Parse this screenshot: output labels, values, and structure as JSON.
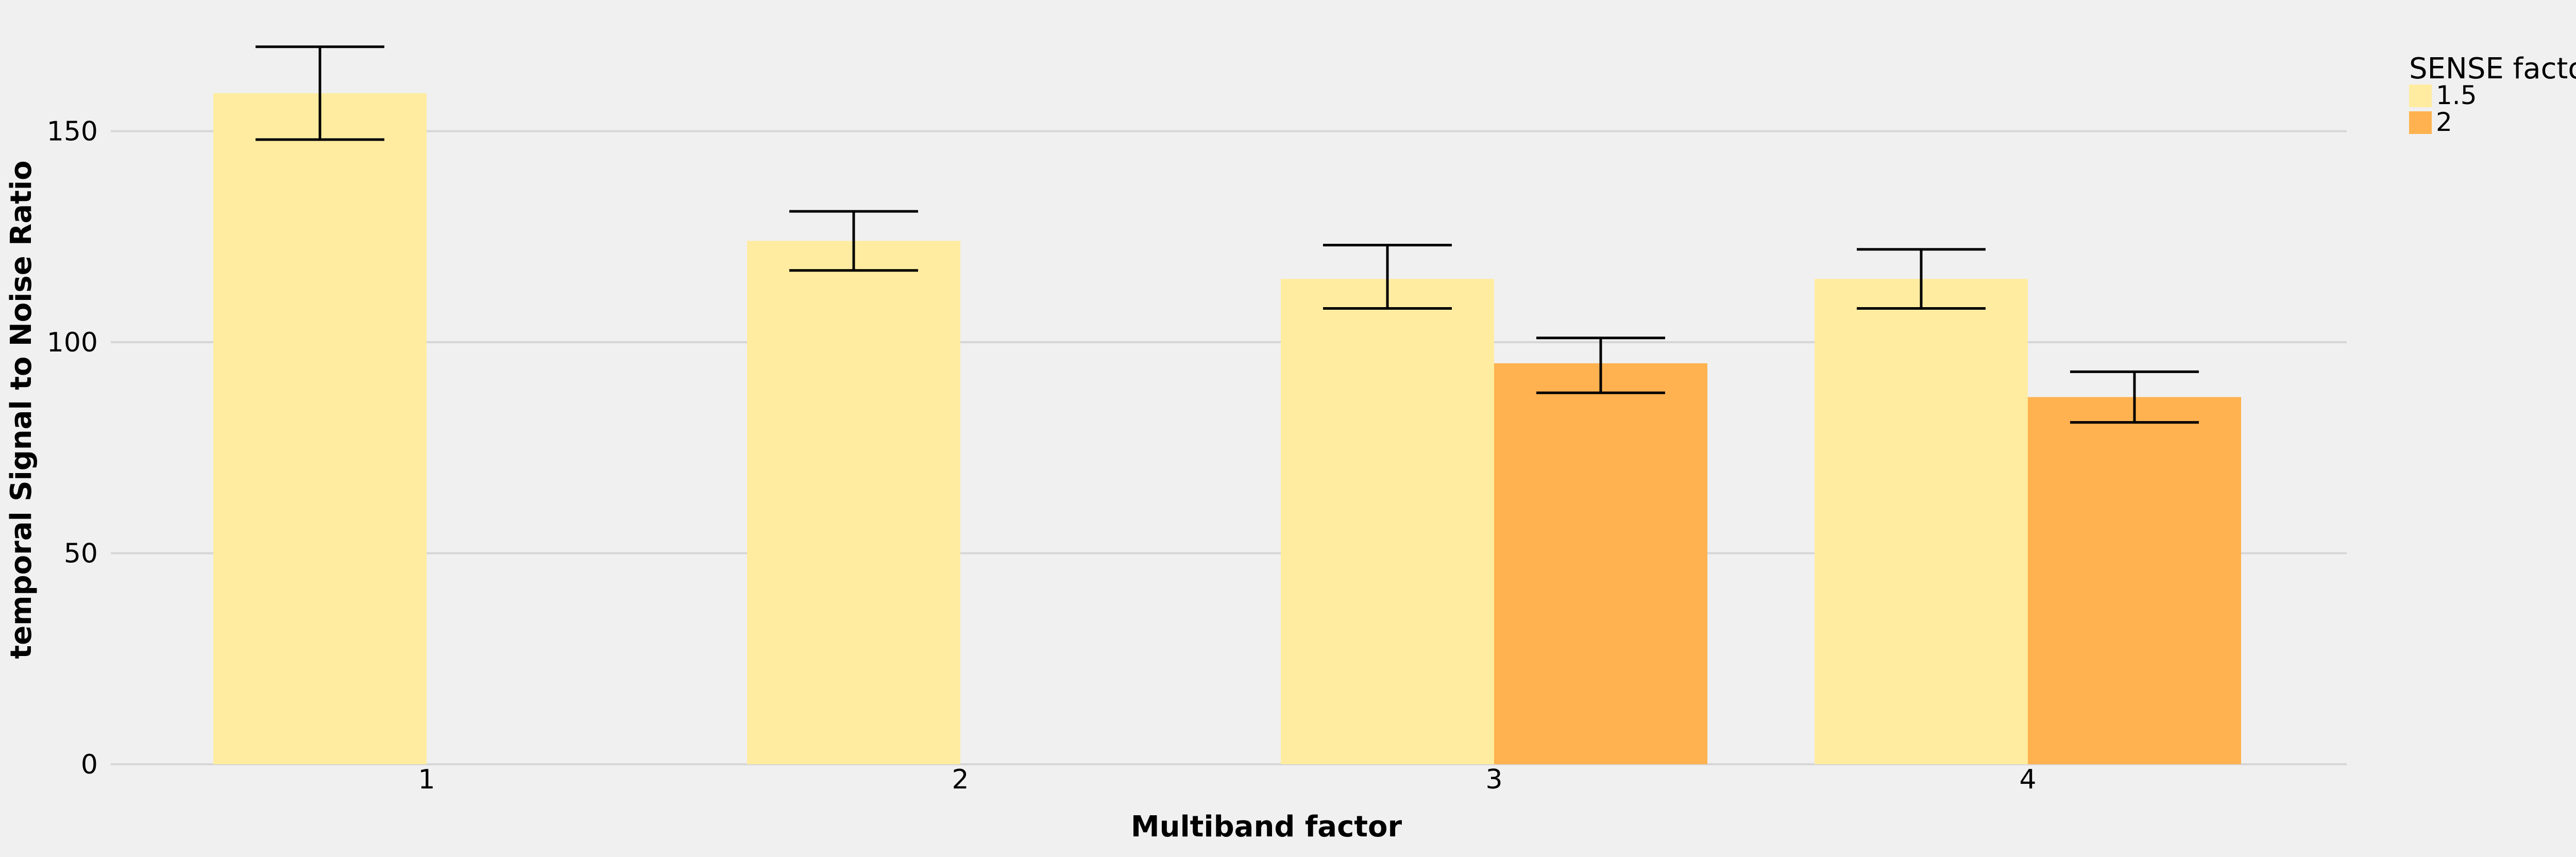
{
  "chart_data": {
    "type": "bar",
    "xlabel": "Multiband factor",
    "ylabel": "temporal Signal to Noise Ratio",
    "categories": [
      "1",
      "2",
      "3",
      "4"
    ],
    "ylim": [
      0,
      172
    ],
    "yticks": [
      0,
      50,
      100,
      150
    ],
    "grid": "horizontal",
    "legend": {
      "title": "SENSE factor",
      "placement": "right"
    },
    "series": [
      {
        "name": "1.5",
        "color": "#ffeca0",
        "values": [
          159,
          124,
          115,
          115
        ],
        "errors": [
          [
            148,
            170
          ],
          [
            117,
            131
          ],
          [
            108,
            123
          ],
          [
            108,
            122
          ]
        ]
      },
      {
        "name": "2",
        "color": "#ffb24f",
        "values": [
          null,
          null,
          95,
          87
        ],
        "errors": [
          null,
          null,
          [
            88,
            101
          ],
          [
            81,
            93
          ]
        ]
      }
    ],
    "colors": {
      "background": "#f0f0f0",
      "grid": "#d6d6d6",
      "errorbar": "#000000"
    }
  }
}
